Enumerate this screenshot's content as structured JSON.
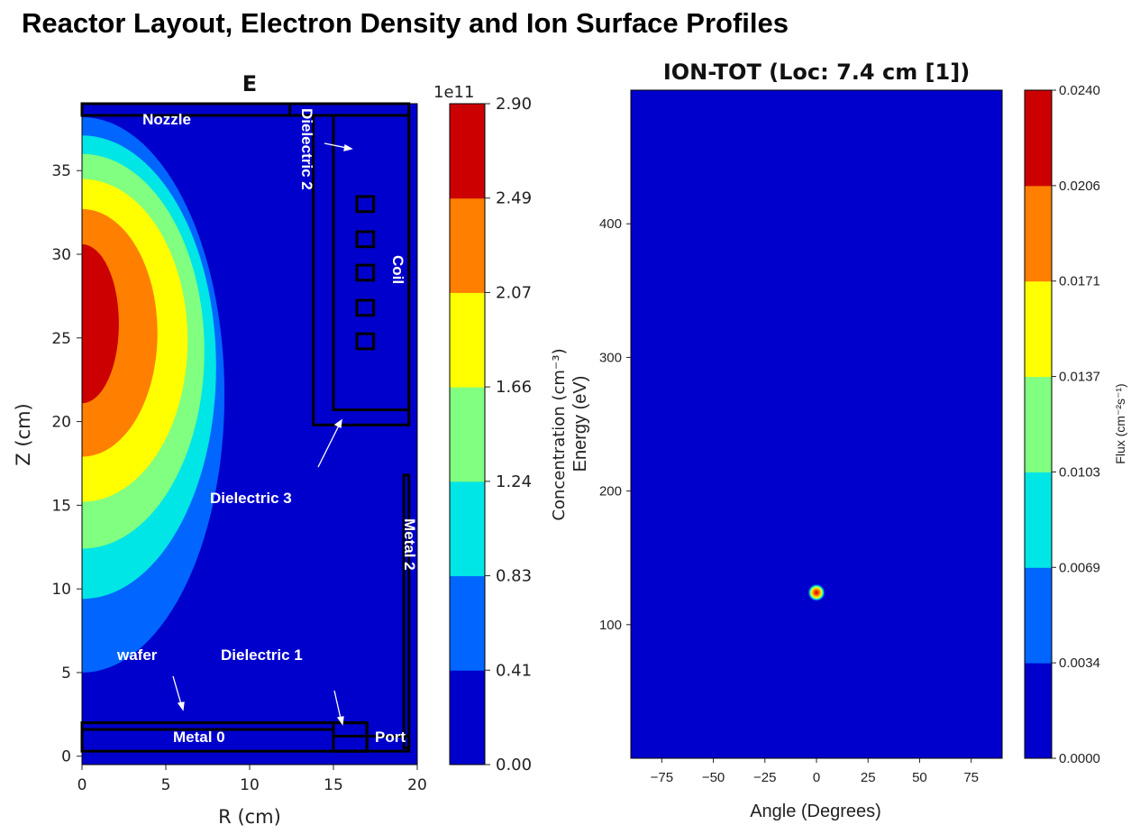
{
  "page": {
    "title": "Reactor Layout, Electron Density and Ion Surface Profiles"
  },
  "chart_data": [
    {
      "type": "heatmap",
      "title": "E",
      "xlabel": "R (cm)",
      "ylabel": "Z (cm)",
      "xlim": [
        0,
        20
      ],
      "ylim": [
        -0.5,
        39
      ],
      "xticks": [
        "0",
        "5",
        "10",
        "15",
        "20"
      ],
      "yticks": [
        "0",
        "5",
        "10",
        "15",
        "20",
        "25",
        "30",
        "35"
      ],
      "colors": [
        "#0000cc",
        "#0066ff",
        "#00e5e5",
        "#80ff80",
        "#ffff00",
        "#ff7f00",
        "#cc0000"
      ],
      "colorbar": {
        "label": "Concentration (cm⁻³)",
        "multiplier": "1e11",
        "ticks": [
          "0.00",
          "0.41",
          "0.83",
          "1.24",
          "1.66",
          "2.07",
          "2.49",
          "2.90"
        ]
      },
      "contours": [
        {
          "level": "0.41",
          "r_center": 8.5,
          "z_top": 38.2,
          "z_bottom": 5.0
        },
        {
          "level": "0.83",
          "r_center": 8.0,
          "z_top": 37.1,
          "z_bottom": 9.4
        },
        {
          "level": "1.24",
          "r_center": 7.3,
          "z_top": 36.0,
          "z_bottom": 12.4
        },
        {
          "level": "1.66",
          "r_center": 6.3,
          "z_top": 34.5,
          "z_bottom": 15.2
        },
        {
          "level": "2.07",
          "r_center": 4.5,
          "z_top": 32.7,
          "z_bottom": 17.9
        },
        {
          "level": "2.49",
          "r_center": 2.2,
          "z_top": 30.6,
          "z_bottom": 21.1
        }
      ],
      "regions": [
        {
          "name": "Nozzle"
        },
        {
          "name": "Dielectric 2"
        },
        {
          "name": "Coil"
        },
        {
          "name": "Dielectric 3"
        },
        {
          "name": "Metal 2"
        },
        {
          "name": "wafer"
        },
        {
          "name": "Dielectric 1"
        },
        {
          "name": "Metal 0"
        },
        {
          "name": "Port"
        }
      ]
    },
    {
      "type": "heatmap",
      "title": "ION-TOT (Loc: 7.4 cm [1])",
      "xlabel": "Angle (Degrees)",
      "ylabel": "Energy (eV)",
      "xlim": [
        -90,
        90
      ],
      "ylim": [
        0,
        500
      ],
      "xticks": [
        "−75",
        "−50",
        "−25",
        "0",
        "25",
        "50",
        "75"
      ],
      "yticks": [
        "100",
        "200",
        "300",
        "400"
      ],
      "colors": [
        "#0000cc",
        "#0066ff",
        "#00e5e5",
        "#80ff80",
        "#ffff00",
        "#ff7f00",
        "#cc0000"
      ],
      "colorbar": {
        "label": "Flux (cm⁻²s⁻¹)",
        "ticks": [
          "0.0000",
          "0.0034",
          "0.0069",
          "0.0103",
          "0.0137",
          "0.0171",
          "0.0206",
          "0.0240"
        ]
      },
      "peak": {
        "angle": 0,
        "energy": 124,
        "flux": "0.0240"
      }
    }
  ]
}
